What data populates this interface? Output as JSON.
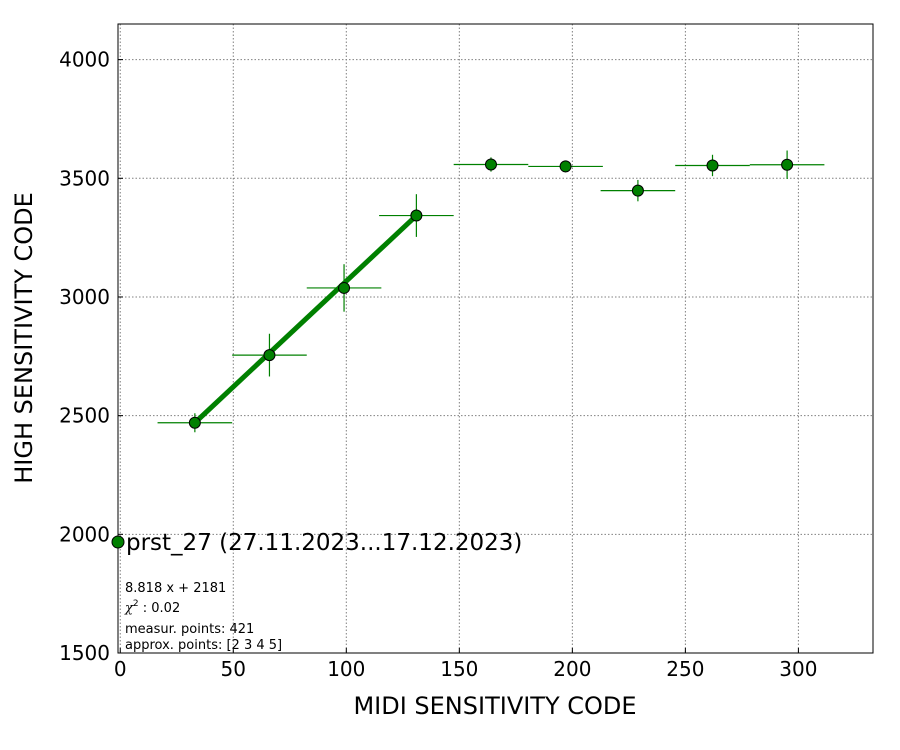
{
  "chart_data": {
    "type": "scatter",
    "xlabel": "MIDI SENSITIVITY CODE",
    "ylabel": "HIGH SENSITIVITY CODE",
    "xlim": [
      -1,
      333
    ],
    "ylim": [
      1500,
      4150
    ],
    "xticks": [
      0,
      50,
      100,
      150,
      200,
      250,
      300
    ],
    "yticks": [
      1500,
      2000,
      2500,
      3000,
      3500,
      4000
    ],
    "grid": true,
    "grid_style": "dotted",
    "color": "#008000",
    "points": [
      {
        "x": 33,
        "y": 2470,
        "xerr": 16.5,
        "yerr": 40
      },
      {
        "x": 66,
        "y": 2755,
        "xerr": 16.5,
        "yerr": 90
      },
      {
        "x": 99,
        "y": 3038,
        "xerr": 16.5,
        "yerr": 100
      },
      {
        "x": 131,
        "y": 3343,
        "xerr": 16.5,
        "yerr": 90
      },
      {
        "x": 164,
        "y": 3558,
        "xerr": 16.5,
        "yerr": 30
      },
      {
        "x": 197,
        "y": 3550,
        "xerr": 16.5,
        "yerr": 25
      },
      {
        "x": 229,
        "y": 3448,
        "xerr": 16.5,
        "yerr": 45
      },
      {
        "x": 262,
        "y": 3554,
        "xerr": 16.5,
        "yerr": 45
      },
      {
        "x": 295,
        "y": 3557,
        "xerr": 16.5,
        "yerr": 60
      }
    ],
    "fit_line": {
      "x": [
        33,
        131
      ],
      "y": [
        2470,
        3343
      ]
    },
    "legend": {
      "label": "prst_27 (27.11.2023...17.12.2023)",
      "placement": "lower-left"
    },
    "annotations": [
      "8.818 x + 2181",
      "$\\chi^2$: 0.02",
      "measur. points: 421",
      "approx. points: [2 3 4 5]"
    ]
  }
}
